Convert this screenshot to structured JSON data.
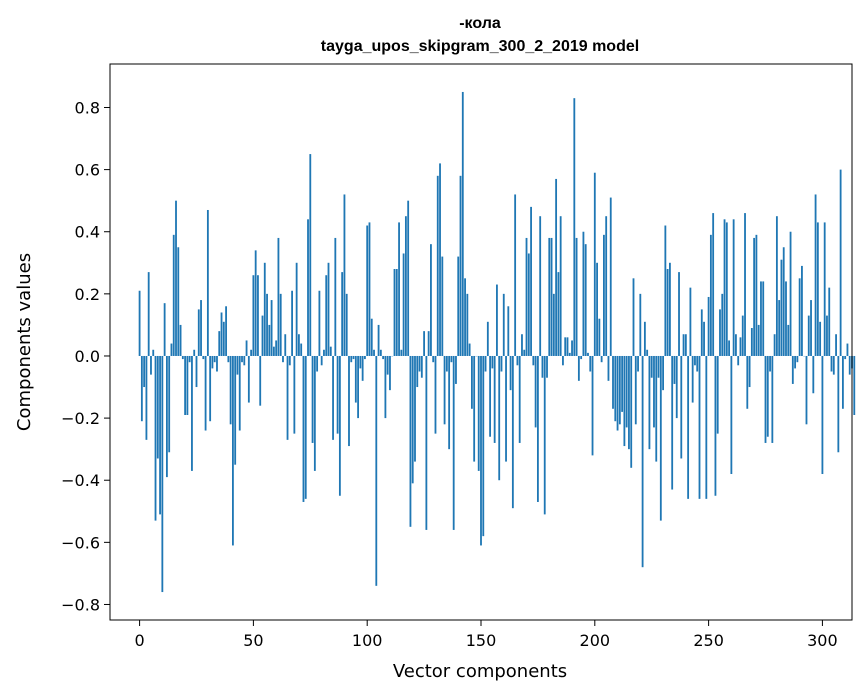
{
  "chart_data": {
    "type": "bar",
    "title": "-кола",
    "subtitle": "tayga_upos_skipgram_300_2_2019 model",
    "xlabel": "Vector components",
    "ylabel": "Components values",
    "xlim": [
      -13,
      313
    ],
    "ylim": [
      -0.85,
      0.94
    ],
    "xticks": [
      0,
      50,
      100,
      150,
      200,
      250,
      300
    ],
    "yticks": [
      -0.8,
      -0.6,
      -0.4,
      -0.2,
      0.0,
      0.2,
      0.4,
      0.6,
      0.8
    ],
    "ytick_labels": [
      "−0.8",
      "−0.6",
      "−0.4",
      "−0.2",
      "0.0",
      "0.2",
      "0.4",
      "0.6",
      "0.8"
    ],
    "xtick_labels": [
      "0",
      "50",
      "100",
      "150",
      "200",
      "250",
      "300"
    ],
    "color": "#1f77b4",
    "values": [
      0.21,
      -0.21,
      -0.1,
      -0.27,
      0.27,
      -0.06,
      0.02,
      -0.53,
      -0.33,
      -0.51,
      -0.76,
      0.17,
      -0.39,
      -0.31,
      0.04,
      0.39,
      0.5,
      0.35,
      0.1,
      -0.01,
      -0.19,
      -0.19,
      -0.02,
      -0.37,
      0.02,
      -0.1,
      0.15,
      0.18,
      -0.01,
      -0.24,
      0.47,
      -0.21,
      -0.04,
      -0.02,
      -0.05,
      0.08,
      0.14,
      0.11,
      0.16,
      -0.02,
      -0.22,
      -0.61,
      -0.35,
      -0.06,
      -0.24,
      -0.02,
      -0.03,
      0.05,
      -0.15,
      0.02,
      0.26,
      0.34,
      0.26,
      -0.16,
      0.13,
      0.3,
      0.2,
      0.1,
      0.18,
      0.03,
      0.05,
      0.38,
      0.2,
      -0.02,
      0.07,
      -0.27,
      -0.03,
      0.21,
      -0.25,
      0.3,
      0.07,
      0.04,
      -0.47,
      -0.46,
      0.44,
      0.65,
      -0.28,
      -0.37,
      -0.05,
      0.21,
      -0.03,
      0.02,
      0.26,
      0.3,
      0.03,
      -0.27,
      0.38,
      -0.25,
      -0.45,
      0.27,
      0.52,
      0.2,
      -0.29,
      -0.02,
      -0.01,
      -0.15,
      -0.2,
      -0.04,
      -0.08,
      -0.01,
      0.42,
      0.43,
      0.12,
      0.02,
      -0.74,
      0.1,
      0.02,
      -0.01,
      -0.2,
      -0.06,
      -0.11,
      0.0,
      0.28,
      0.28,
      0.43,
      0.02,
      0.33,
      0.45,
      0.5,
      -0.55,
      -0.41,
      -0.34,
      -0.1,
      -0.05,
      -0.07,
      0.08,
      -0.56,
      0.08,
      0.36,
      -0.02,
      -0.25,
      0.58,
      0.62,
      0.32,
      -0.22,
      -0.05,
      -0.3,
      -0.02,
      -0.56,
      -0.09,
      0.32,
      0.58,
      0.85,
      0.25,
      0.2,
      0.04,
      -0.17,
      -0.34,
      0.0,
      -0.37,
      -0.61,
      -0.58,
      -0.05,
      0.11,
      -0.26,
      -0.04,
      -0.28,
      0.23,
      -0.4,
      -0.05,
      0.2,
      -0.34,
      0.16,
      -0.11,
      -0.49,
      0.52,
      -0.03,
      -0.28,
      0.07,
      0.02,
      0.38,
      0.33,
      0.48,
      -0.03,
      -0.23,
      -0.47,
      0.45,
      -0.07,
      -0.51,
      -0.07,
      0.38,
      0.38,
      0.2,
      0.57,
      0.27,
      0.45,
      -0.03,
      0.06,
      0.06,
      0.01,
      0.05,
      0.83,
      0.38,
      -0.08,
      -0.01,
      0.4,
      0.36,
      0.01,
      -0.05,
      -0.32,
      0.59,
      0.3,
      0.12,
      -0.02,
      0.39,
      0.45,
      -0.08,
      0.51,
      -0.17,
      -0.21,
      -0.24,
      -0.22,
      -0.18,
      -0.29,
      -0.23,
      -0.3,
      -0.36,
      0.25,
      -0.22,
      -0.05,
      0.2,
      -0.68,
      0.11,
      0.02,
      -0.3,
      -0.07,
      -0.23,
      -0.34,
      -0.07,
      -0.53,
      -0.11,
      0.42,
      0.28,
      0.3,
      -0.43,
      -0.09,
      -0.2,
      0.27,
      -0.33,
      0.07,
      0.07,
      -0.46,
      0.22,
      -0.15,
      -0.03,
      -0.05,
      -0.46,
      0.15,
      0.11,
      -0.46,
      0.19,
      0.39,
      0.46,
      -0.45,
      -0.25,
      0.15,
      0.2,
      0.44,
      0.43,
      0.05,
      -0.38,
      0.44,
      0.07,
      -0.03,
      0.06,
      0.13,
      0.46,
      -0.17,
      -0.1,
      0.09,
      0.38,
      0.39,
      0.1,
      0.24,
      0.24,
      -0.28,
      -0.26,
      -0.05,
      -0.28,
      0.07,
      0.45,
      0.18,
      0.31,
      0.35,
      0.24,
      0.1,
      0.4,
      -0.09,
      -0.04,
      -0.02,
      0.25,
      0.29,
      0.0,
      -0.22,
      0.13,
      0.18,
      -0.12,
      0.52,
      0.43,
      0.11,
      -0.38,
      0.43,
      0.13,
      0.22,
      -0.05,
      -0.06,
      0.07,
      -0.31,
      0.6,
      -0.17,
      -0.01,
      0.04,
      -0.06,
      -0.04,
      -0.19
    ]
  }
}
